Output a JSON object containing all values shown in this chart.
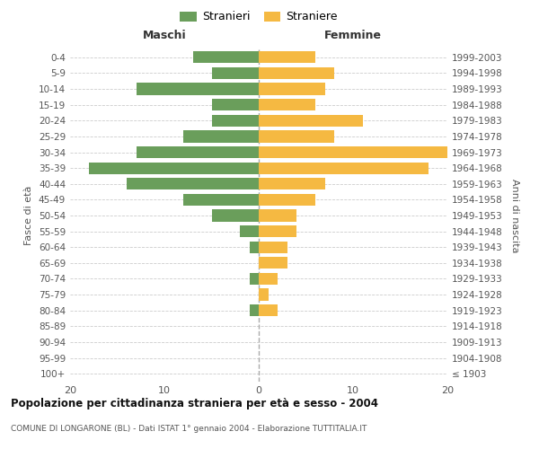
{
  "age_groups": [
    "100+",
    "95-99",
    "90-94",
    "85-89",
    "80-84",
    "75-79",
    "70-74",
    "65-69",
    "60-64",
    "55-59",
    "50-54",
    "45-49",
    "40-44",
    "35-39",
    "30-34",
    "25-29",
    "20-24",
    "15-19",
    "10-14",
    "5-9",
    "0-4"
  ],
  "birth_years": [
    "≤ 1903",
    "1904-1908",
    "1909-1913",
    "1914-1918",
    "1919-1923",
    "1924-1928",
    "1929-1933",
    "1934-1938",
    "1939-1943",
    "1944-1948",
    "1949-1953",
    "1954-1958",
    "1959-1963",
    "1964-1968",
    "1969-1973",
    "1974-1978",
    "1979-1983",
    "1984-1988",
    "1989-1993",
    "1994-1998",
    "1999-2003"
  ],
  "males": [
    0,
    0,
    0,
    0,
    1,
    0,
    1,
    0,
    1,
    2,
    5,
    8,
    14,
    18,
    13,
    8,
    5,
    5,
    13,
    5,
    7
  ],
  "females": [
    0,
    0,
    0,
    0,
    2,
    1,
    2,
    3,
    3,
    4,
    4,
    6,
    7,
    18,
    20,
    8,
    11,
    6,
    7,
    8,
    6
  ],
  "male_color": "#6a9e5b",
  "female_color": "#f5b942",
  "background_color": "#ffffff",
  "grid_color": "#cccccc",
  "title": "Popolazione per cittadinanza straniera per età e sesso - 2004",
  "subtitle": "COMUNE DI LONGARONE (BL) - Dati ISTAT 1° gennaio 2004 - Elaborazione TUTTITALIA.IT",
  "label_maschi": "Maschi",
  "label_femmine": "Femmine",
  "ylabel_left": "Fasce di età",
  "ylabel_right": "Anni di nascita",
  "legend_male": "Stranieri",
  "legend_female": "Straniere",
  "xlim": 20,
  "bar_height": 0.75
}
